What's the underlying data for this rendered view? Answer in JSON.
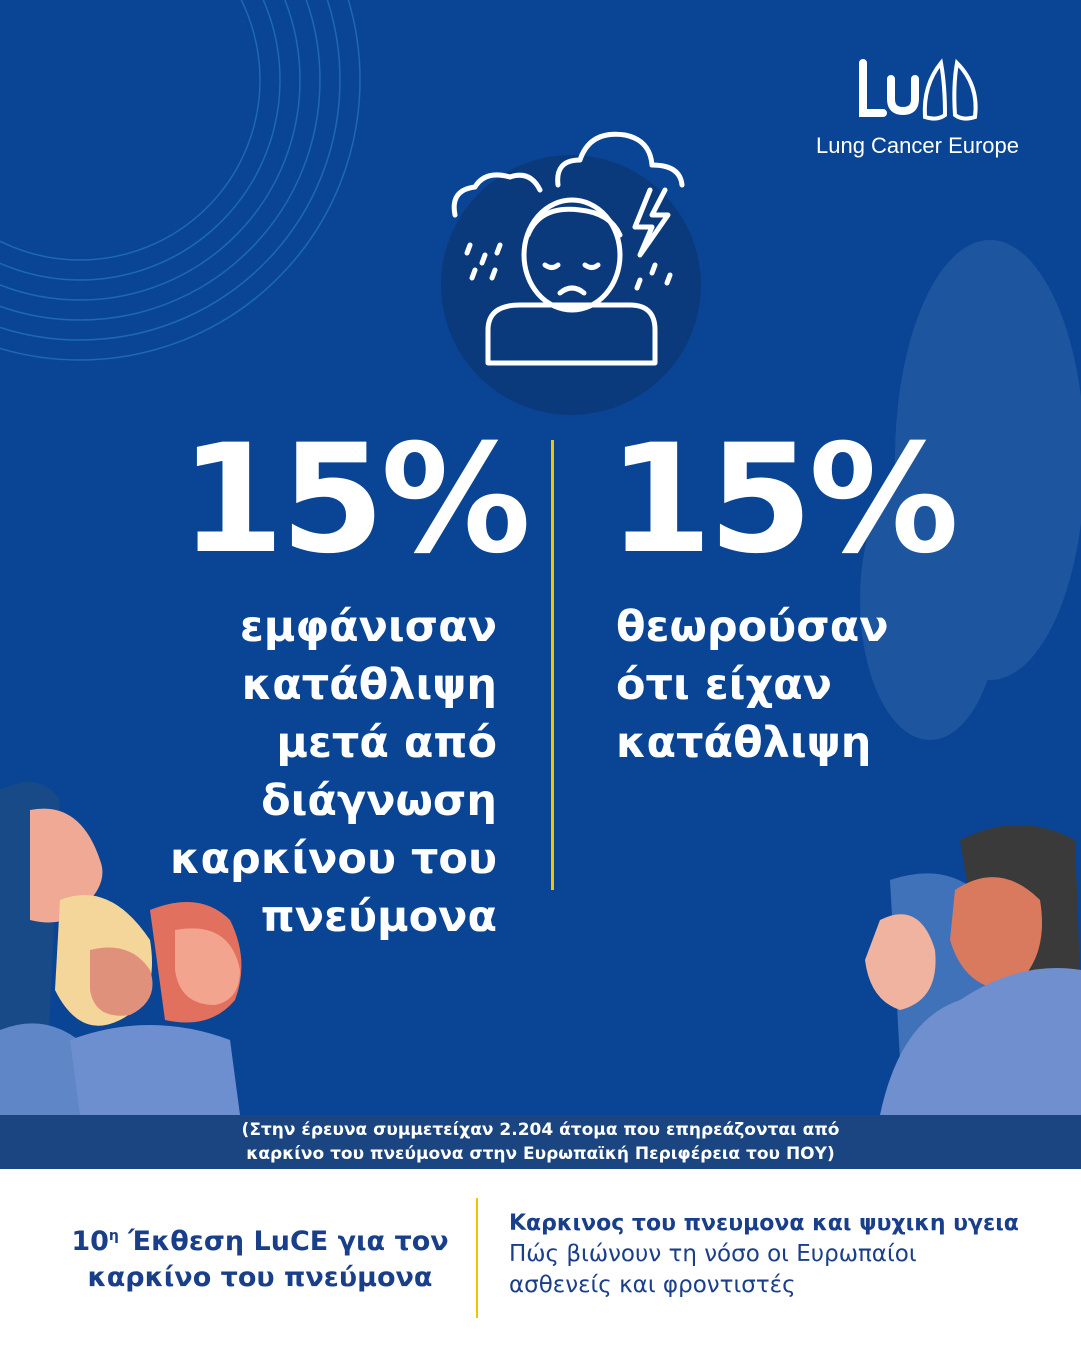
{
  "colors": {
    "background": "#0a4595",
    "accent": "#f2c400",
    "caption_bg": "#1a4580",
    "footer_text": "#1a3f8a"
  },
  "logo": {
    "mark": "LuCE",
    "name": "Lung Cancer Europe"
  },
  "illustration_icon": "depressed-person-under-storm-clouds-icon",
  "stats": [
    {
      "value": "15%",
      "lines": [
        "εμφάνισαν",
        "κατάθλιψη",
        "μετά από",
        "διάγνωση",
        "καρκίνου του",
        "πνεύμονα"
      ]
    },
    {
      "value": "15%",
      "lines": [
        "θεωρούσαν",
        "ότι είχαν",
        "κατάθλιψη"
      ]
    }
  ],
  "caption": {
    "line1": "(Στην έρευνα συμμετείχαν 2.204 άτομα που επηρεάζονται από",
    "line2": "καρκίνο του πνεύμονα στην Ευρωπαϊκή Περιφέρεια του ΠΟΥ)"
  },
  "footer": {
    "report_num": "10",
    "report_sup": "η",
    "report_line1": " Έκθεση LuCE για τον",
    "report_line2": "καρκίνο του πνεύμονα",
    "title": "Καρκινος του πνευμονα και ψυχικη υγεια",
    "subtitle_line1": "Πώς βιώνουν τη νόσο οι Ευρωπαίοι",
    "subtitle_line2": "ασθενείς και φροντιστές"
  }
}
